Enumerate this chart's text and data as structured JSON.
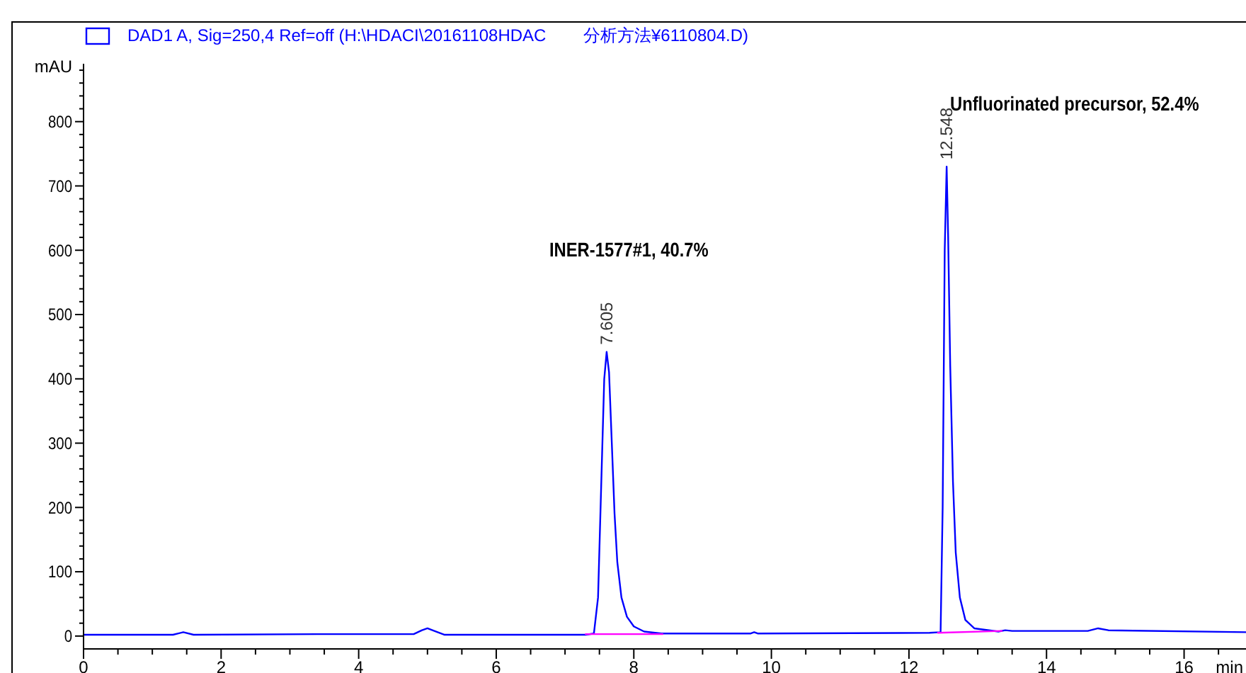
{
  "chart_data": {
    "type": "line",
    "xlabel": "min",
    "ylabel": "mAU",
    "xlim": [
      0,
      16.9
    ],
    "ylim": [
      -20,
      890
    ],
    "xticks": [
      0,
      {
        "value": 0.5,
        "label": null
      },
      {
        "value": 1,
        "label": null
      },
      {
        "value": 1.5,
        "label": null
      },
      2,
      {
        "value": 2.5,
        "label": null
      },
      {
        "value": 3,
        "label": null
      },
      {
        "value": 3.5,
        "label": null
      },
      4,
      {
        "value": 4.5,
        "label": null
      },
      {
        "value": 5,
        "label": null
      },
      {
        "value": 5.5,
        "label": null
      },
      6,
      {
        "value": 6.5,
        "label": null
      },
      {
        "value": 7,
        "label": null
      },
      {
        "value": 7.5,
        "label": null
      },
      8,
      {
        "value": 8.5,
        "label": null
      },
      {
        "value": 9,
        "label": null
      },
      {
        "value": 9.5,
        "label": null
      },
      10,
      {
        "value": 10.5,
        "label": null
      },
      {
        "value": 11,
        "label": null
      },
      {
        "value": 11.5,
        "label": null
      },
      12,
      {
        "value": 12.5,
        "label": null
      },
      {
        "value": 13,
        "label": null
      },
      {
        "value": 13.5,
        "label": null
      },
      14,
      {
        "value": 14.5,
        "label": null
      },
      {
        "value": 15,
        "label": null
      },
      {
        "value": 15.5,
        "label": null
      },
      16,
      {
        "value": 16.5,
        "label": null
      }
    ],
    "yticks": [
      0,
      {
        "value": 20,
        "label": null
      },
      {
        "value": 40,
        "label": null
      },
      {
        "value": 60,
        "label": null
      },
      {
        "value": 80,
        "label": null
      },
      100,
      {
        "value": 120,
        "label": null
      },
      {
        "value": 140,
        "label": null
      },
      {
        "value": 160,
        "label": null
      },
      {
        "value": 180,
        "label": null
      },
      200,
      {
        "value": 220,
        "label": null
      },
      {
        "value": 240,
        "label": null
      },
      {
        "value": 260,
        "label": null
      },
      {
        "value": 280,
        "label": null
      },
      300,
      {
        "value": 320,
        "label": null
      },
      {
        "value": 340,
        "label": null
      },
      {
        "value": 360,
        "label": null
      },
      {
        "value": 380,
        "label": null
      },
      400,
      {
        "value": 420,
        "label": null
      },
      {
        "value": 440,
        "label": null
      },
      {
        "value": 460,
        "label": null
      },
      {
        "value": 480,
        "label": null
      },
      500,
      {
        "value": 520,
        "label": null
      },
      {
        "value": 540,
        "label": null
      },
      {
        "value": 560,
        "label": null
      },
      {
        "value": 580,
        "label": null
      },
      600,
      {
        "value": 620,
        "label": null
      },
      {
        "value": 640,
        "label": null
      },
      {
        "value": 660,
        "label": null
      },
      {
        "value": 680,
        "label": null
      },
      700,
      {
        "value": 720,
        "label": null
      },
      {
        "value": 740,
        "label": null
      },
      {
        "value": 760,
        "label": null
      },
      {
        "value": 780,
        "label": null
      },
      800,
      {
        "value": 820,
        "label": null
      },
      {
        "value": 840,
        "label": null
      },
      {
        "value": 860,
        "label": null
      },
      {
        "value": 880,
        "label": null
      }
    ],
    "grid": false,
    "legend": "top left",
    "line_style": "solid",
    "marker": "none",
    "series": [
      {
        "name": "DAD1 A, Sig=250,4 Ref=off (H:\\HDACI\\20161108HDAC",
        "color": "#0000ff",
        "x": [
          0,
          1.3,
          1.45,
          1.6,
          3.4,
          4.8,
          4.92,
          5.0,
          5.1,
          5.25,
          7.3,
          7.42,
          7.48,
          7.53,
          7.57,
          7.605,
          7.64,
          7.68,
          7.72,
          7.76,
          7.82,
          7.9,
          8.0,
          8.15,
          8.4,
          9.7,
          9.75,
          9.8,
          12.3,
          12.46,
          12.49,
          12.52,
          12.548,
          12.57,
          12.6,
          12.64,
          12.68,
          12.74,
          12.82,
          12.95,
          13.3,
          13.4,
          13.5,
          14.6,
          14.75,
          14.9,
          16.9
        ],
        "values": [
          2,
          2,
          6,
          2,
          3,
          3,
          9,
          12,
          8,
          2,
          2,
          4,
          60,
          250,
          400,
          442,
          410,
          300,
          190,
          115,
          60,
          30,
          15,
          7,
          4,
          4,
          6,
          4,
          5,
          6,
          200,
          600,
          730,
          620,
          420,
          240,
          130,
          60,
          25,
          12,
          7,
          9,
          8,
          8,
          12,
          9,
          6
        ]
      },
      {
        "color": "#ff00ff",
        "x": [
          7.3,
          8.42
        ],
        "values": [
          3,
          3
        ]
      },
      {
        "color": "#ff00ff",
        "x": [
          12.42,
          13.35
        ],
        "values": [
          5,
          8
        ]
      }
    ],
    "annotations": [
      "分析方法¥6110804.D)",
      "INER-1577#1, 40.7%",
      "Unfluorinated precursor, 52.4%",
      {
        "text": "7.605",
        "x": 7.605,
        "y": 442
      },
      {
        "text": "12.548",
        "x": 12.548,
        "y": 730
      }
    ]
  }
}
